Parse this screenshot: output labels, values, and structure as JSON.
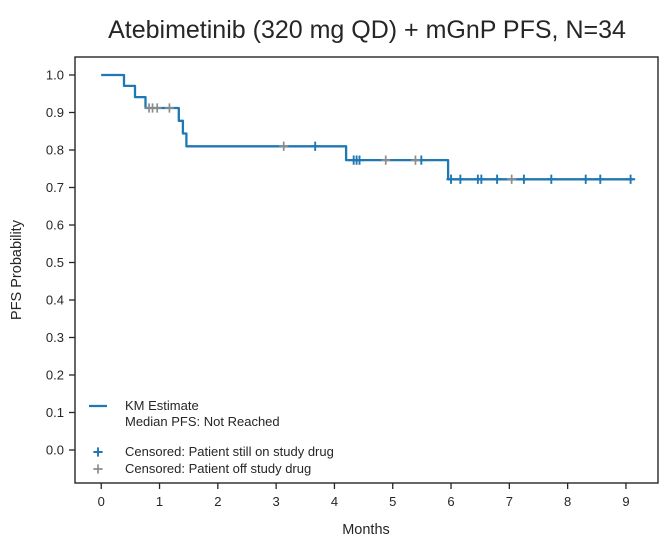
{
  "title": "Atebimetinib (320 mg QD) + mGnP PFS, N=34",
  "colors": {
    "title": "#2e96d8",
    "km_line": "#1f77b4",
    "censor_on_study": "#1f77b4",
    "censor_off_study": "#8c8c8c",
    "axis": "#262626"
  },
  "chart_data": {
    "type": "line",
    "subtype": "kaplan-meier-step-function",
    "title": "Atebimetinib (320 mg QD) + mGnP PFS, N=34",
    "n_patients": 34,
    "xlabel": "Months",
    "ylabel": "PFS Probability",
    "xlim": [
      -0.45,
      9.55
    ],
    "ylim": [
      -0.088,
      1.048
    ],
    "x_ticks": [
      0,
      1,
      2,
      3,
      4,
      5,
      6,
      7,
      8,
      9
    ],
    "y_ticks": [
      0.0,
      0.1,
      0.2,
      0.3,
      0.4,
      0.5,
      0.6,
      0.7,
      0.8,
      0.9,
      1.0
    ],
    "grid": false,
    "legend_position": "lower-left-inside",
    "km_curve": {
      "name": "KM Estimate",
      "median_pfs": "Not Reached",
      "steps": [
        {
          "x": 0.0,
          "y": 1.0
        },
        {
          "x": 0.39,
          "y": 0.971
        },
        {
          "x": 0.58,
          "y": 0.941
        },
        {
          "x": 0.76,
          "y": 0.912
        },
        {
          "x": 1.33,
          "y": 0.878
        },
        {
          "x": 1.4,
          "y": 0.844
        },
        {
          "x": 1.46,
          "y": 0.81
        },
        {
          "x": 4.2,
          "y": 0.773
        },
        {
          "x": 5.95,
          "y": 0.722
        }
      ],
      "end_x": 9.13
    },
    "censored_on_study": [
      {
        "x": 3.67,
        "y": 0.81
      },
      {
        "x": 4.33,
        "y": 0.773
      },
      {
        "x": 4.38,
        "y": 0.773
      },
      {
        "x": 4.43,
        "y": 0.773
      },
      {
        "x": 5.49,
        "y": 0.773
      },
      {
        "x": 6.0,
        "y": 0.722
      },
      {
        "x": 6.16,
        "y": 0.722
      },
      {
        "x": 6.46,
        "y": 0.722
      },
      {
        "x": 6.52,
        "y": 0.722
      },
      {
        "x": 6.79,
        "y": 0.722
      },
      {
        "x": 7.25,
        "y": 0.722
      },
      {
        "x": 7.72,
        "y": 0.722
      },
      {
        "x": 8.31,
        "y": 0.722
      },
      {
        "x": 8.56,
        "y": 0.722
      },
      {
        "x": 9.08,
        "y": 0.722
      }
    ],
    "censored_off_study": [
      {
        "x": 0.82,
        "y": 0.912
      },
      {
        "x": 0.88,
        "y": 0.912
      },
      {
        "x": 0.96,
        "y": 0.912
      },
      {
        "x": 1.17,
        "y": 0.912
      },
      {
        "x": 3.13,
        "y": 0.81
      },
      {
        "x": 4.88,
        "y": 0.773
      },
      {
        "x": 5.39,
        "y": 0.773
      },
      {
        "x": 7.04,
        "y": 0.722
      }
    ],
    "legend": {
      "km_label": "KM Estimate",
      "median_label": "Median PFS: Not Reached",
      "censored_on_label": "Censored: Patient still on study drug",
      "censored_off_label": "Censored: Patient off study drug"
    }
  }
}
